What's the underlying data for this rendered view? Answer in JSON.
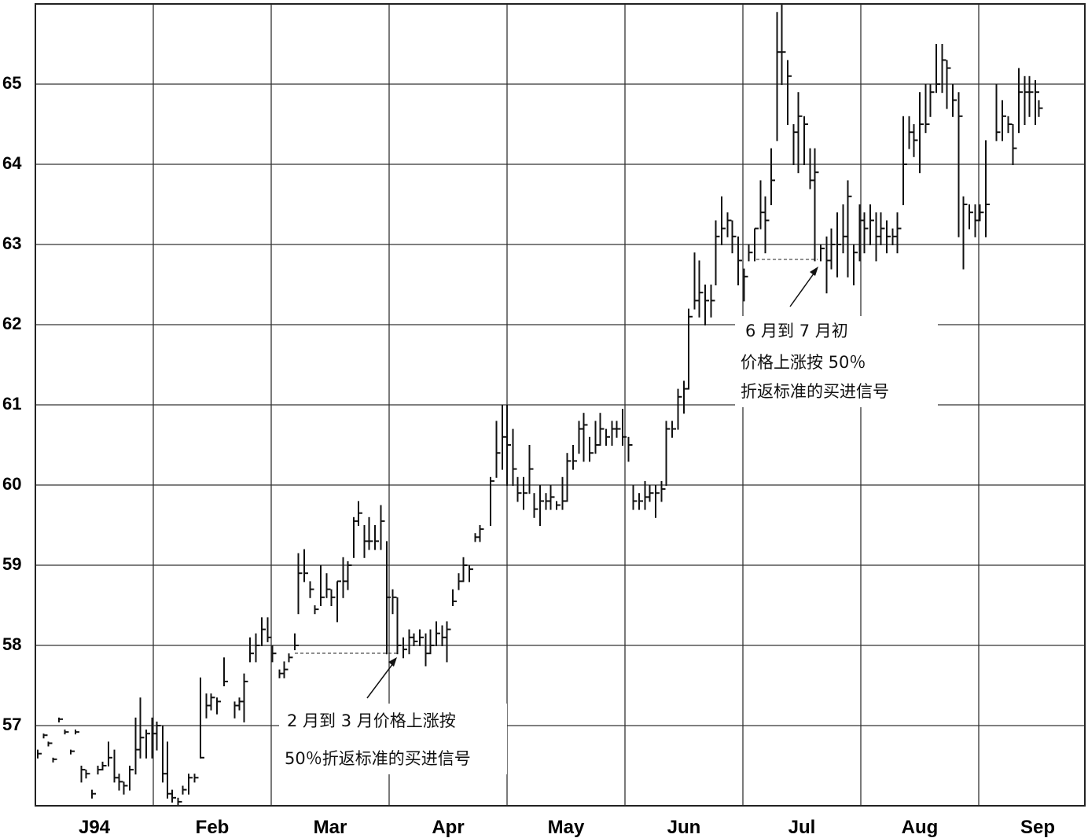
{
  "chart_data": {
    "type": "ohlc",
    "ylim": [
      56,
      66
    ],
    "yticks": [
      57,
      58,
      59,
      60,
      61,
      62,
      63,
      64,
      65
    ],
    "xlim": [
      0,
      8.9
    ],
    "xticks": [
      {
        "value": 0.5,
        "label": "J94"
      },
      {
        "value": 1.5,
        "label": "Feb"
      },
      {
        "value": 2.5,
        "label": "Mar"
      },
      {
        "value": 3.5,
        "label": "Apr"
      },
      {
        "value": 4.5,
        "label": "May"
      },
      {
        "value": 5.5,
        "label": "Jun"
      },
      {
        "value": 6.5,
        "label": "Jul"
      },
      {
        "value": 7.5,
        "label": "Aug"
      },
      {
        "value": 8.5,
        "label": "Sep"
      }
    ],
    "grid": true,
    "color": "#111111",
    "x": [
      0.02,
      0.07,
      0.11,
      0.15,
      0.2,
      0.25,
      0.3,
      0.34,
      0.39,
      0.43,
      0.48,
      0.53,
      0.57,
      0.62,
      0.67,
      0.71,
      0.75,
      0.8,
      0.85,
      0.89,
      0.94,
      0.99,
      1.03,
      1.08,
      1.12,
      1.16,
      1.21,
      1.25,
      1.3,
      1.35,
      1.4,
      1.45,
      1.49,
      1.54,
      1.6,
      1.69,
      1.73,
      1.77,
      1.82,
      1.87,
      1.92,
      1.97,
      2.01,
      2.07,
      2.11,
      2.15,
      2.2,
      2.23,
      2.28,
      2.33,
      2.37,
      2.42,
      2.47,
      2.51,
      2.56,
      2.61,
      2.65,
      2.7,
      2.74,
      2.79,
      2.83,
      2.88,
      2.93,
      2.98,
      3.03,
      3.07,
      3.12,
      3.17,
      3.21,
      3.26,
      3.31,
      3.35,
      3.4,
      3.45,
      3.49,
      3.54,
      3.59,
      3.63,
      3.68,
      3.73,
      3.77,
      3.86,
      3.91,
      3.96,
      4.0,
      4.05,
      4.09,
      4.14,
      4.19,
      4.23,
      4.28,
      4.33,
      4.37,
      4.42,
      4.47,
      4.51,
      4.56,
      4.61,
      4.65,
      4.7,
      4.75,
      4.79,
      4.84,
      4.89,
      4.93,
      4.98,
      5.03,
      5.07,
      5.12,
      5.17,
      5.21,
      5.26,
      5.31,
      5.35,
      5.4,
      5.45,
      5.5,
      5.54,
      5.59,
      5.63,
      5.68,
      5.73,
      5.77,
      5.82,
      5.87,
      5.91,
      5.96,
      6.01,
      6.05,
      6.1,
      6.15,
      6.19,
      6.24,
      6.29,
      6.33,
      6.38,
      6.43,
      6.47,
      6.52,
      6.57,
      6.61,
      6.66,
      6.71,
      6.75,
      6.8,
      6.85,
      6.89,
      6.94,
      6.99,
      7.03,
      7.08,
      7.13,
      7.17,
      7.22,
      7.27,
      7.31,
      7.36,
      7.41,
      7.45,
      7.5,
      7.55,
      7.59,
      7.64,
      7.69,
      7.73,
      7.78,
      7.83,
      7.87,
      7.92,
      7.97,
      8.01,
      8.06,
      8.15,
      8.2,
      8.25,
      8.29,
      8.34,
      8.39,
      8.43,
      8.48,
      8.51
    ],
    "high": [
      56.7,
      56.9,
      56.8,
      56.6,
      57.1,
      56.95,
      56.7,
      56.95,
      56.5,
      56.45,
      56.2,
      56.5,
      56.55,
      56.8,
      56.7,
      56.4,
      56.3,
      56.5,
      57.1,
      57.35,
      56.95,
      57.1,
      57.05,
      57.0,
      56.8,
      56.2,
      56.1,
      56.25,
      56.4,
      56.4,
      57.6,
      57.4,
      57.4,
      57.35,
      57.85,
      57.3,
      57.35,
      57.65,
      58.1,
      58.15,
      58.35,
      58.35,
      58.0,
      57.7,
      57.8,
      57.9,
      58.15,
      59.15,
      59.2,
      58.8,
      58.5,
      59.0,
      58.9,
      58.7,
      58.8,
      59.1,
      59.05,
      59.6,
      59.8,
      59.5,
      59.6,
      59.5,
      59.75,
      59.3,
      58.7,
      58.6,
      58.1,
      58.2,
      58.15,
      58.2,
      58.15,
      58.2,
      58.3,
      58.25,
      58.3,
      58.7,
      58.9,
      59.1,
      59.0,
      59.4,
      59.5,
      60.1,
      60.8,
      61.0,
      61.0,
      60.7,
      60.1,
      60.1,
      60.5,
      59.9,
      60.0,
      59.9,
      60.0,
      59.8,
      60.1,
      60.4,
      60.5,
      60.8,
      60.9,
      60.6,
      60.8,
      60.9,
      60.7,
      60.8,
      60.8,
      60.95,
      60.6,
      60.0,
      59.9,
      60.05,
      60.0,
      60.0,
      60.05,
      60.8,
      60.8,
      61.2,
      61.3,
      62.2,
      62.9,
      62.8,
      62.5,
      62.5,
      63.3,
      63.6,
      63.4,
      63.3,
      63.1,
      62.7,
      63.0,
      63.2,
      63.8,
      63.6,
      64.2,
      65.9,
      66.0,
      65.3,
      64.5,
      64.9,
      64.6,
      64.2,
      64.2,
      63.0,
      63.1,
      63.2,
      63.4,
      63.5,
      63.8,
      63.0,
      63.5,
      63.4,
      63.5,
      63.4,
      63.4,
      63.3,
      63.2,
      63.4,
      64.6,
      64.6,
      64.5,
      64.9,
      65.0,
      65.0,
      65.5,
      65.5,
      65.3,
      65.0,
      64.9,
      63.6,
      63.5,
      63.5,
      63.5,
      64.3,
      65.0,
      64.8,
      64.6,
      64.5,
      65.2,
      65.1,
      65.1,
      65.05,
      64.8
    ],
    "low": [
      56.6,
      56.85,
      56.75,
      56.55,
      57.05,
      56.9,
      56.65,
      56.9,
      56.3,
      56.35,
      56.1,
      56.4,
      56.45,
      56.5,
      56.3,
      56.2,
      56.15,
      56.2,
      56.4,
      56.6,
      56.6,
      56.6,
      56.7,
      56.3,
      56.1,
      56.05,
      56.0,
      56.15,
      56.15,
      56.3,
      56.6,
      57.1,
      57.2,
      57.15,
      57.5,
      57.1,
      57.2,
      57.05,
      57.8,
      57.8,
      58.0,
      58.05,
      57.8,
      57.6,
      57.6,
      57.8,
      57.95,
      58.4,
      58.8,
      58.6,
      58.4,
      58.5,
      58.6,
      58.5,
      58.3,
      58.6,
      58.7,
      59.1,
      59.5,
      59.1,
      59.2,
      59.2,
      59.2,
      57.9,
      58.4,
      57.9,
      57.85,
      57.9,
      58.0,
      58.0,
      57.75,
      57.9,
      58.0,
      58.0,
      57.8,
      58.5,
      58.7,
      58.8,
      58.8,
      59.3,
      59.3,
      59.5,
      60.1,
      60.2,
      60.0,
      60.0,
      59.8,
      59.7,
      59.9,
      59.6,
      59.5,
      59.7,
      59.7,
      59.7,
      59.7,
      59.8,
      60.2,
      60.4,
      60.3,
      60.3,
      60.4,
      60.5,
      60.5,
      60.5,
      60.6,
      60.5,
      60.3,
      59.7,
      59.7,
      59.7,
      59.8,
      59.6,
      59.8,
      60.0,
      60.6,
      60.7,
      60.9,
      61.2,
      62.2,
      62.1,
      62.0,
      62.1,
      62.5,
      63.0,
      63.1,
      62.9,
      62.5,
      62.3,
      62.8,
      62.8,
      63.2,
      62.9,
      63.5,
      64.3,
      65.0,
      64.5,
      64.0,
      63.9,
      64.0,
      63.7,
      62.8,
      62.8,
      62.4,
      62.7,
      62.6,
      62.9,
      62.6,
      62.5,
      62.8,
      62.9,
      63.0,
      62.8,
      63.0,
      62.9,
      63.0,
      62.9,
      63.5,
      64.2,
      64.1,
      63.9,
      64.4,
      64.6,
      64.9,
      64.9,
      64.7,
      64.6,
      63.1,
      62.7,
      63.2,
      63.1,
      63.3,
      63.1,
      64.3,
      64.3,
      64.4,
      64.0,
      64.4,
      64.5,
      64.6,
      64.5,
      64.6
    ],
    "close": [
      56.65,
      56.88,
      56.78,
      56.58,
      57.08,
      56.92,
      56.68,
      56.92,
      56.45,
      56.4,
      56.15,
      56.45,
      56.5,
      56.6,
      56.35,
      56.3,
      56.25,
      56.45,
      56.7,
      56.85,
      56.9,
      56.9,
      57.0,
      56.4,
      56.15,
      56.1,
      56.05,
      56.2,
      56.35,
      56.35,
      56.6,
      57.25,
      57.35,
      57.3,
      57.55,
      57.25,
      57.3,
      57.55,
      57.9,
      58.0,
      58.2,
      58.1,
      57.9,
      57.65,
      57.7,
      57.85,
      58.0,
      58.9,
      58.9,
      58.7,
      58.45,
      58.6,
      58.7,
      58.6,
      58.8,
      58.8,
      59.0,
      59.55,
      59.65,
      59.3,
      59.3,
      59.3,
      59.55,
      58.6,
      58.6,
      58.0,
      57.95,
      58.1,
      58.05,
      58.1,
      57.9,
      58.0,
      58.15,
      58.1,
      58.2,
      58.55,
      58.8,
      59.0,
      58.95,
      59.35,
      59.45,
      60.05,
      60.4,
      60.6,
      60.5,
      60.2,
      59.9,
      59.9,
      60.2,
      59.7,
      59.8,
      59.8,
      59.85,
      59.75,
      59.8,
      60.3,
      60.3,
      60.7,
      60.75,
      60.4,
      60.5,
      60.7,
      60.6,
      60.7,
      60.7,
      60.6,
      60.5,
      59.8,
      59.8,
      59.85,
      59.9,
      59.9,
      59.95,
      60.7,
      60.7,
      61.1,
      61.2,
      62.1,
      62.3,
      62.4,
      62.3,
      62.3,
      63.1,
      63.2,
      63.3,
      63.1,
      62.8,
      62.6,
      62.9,
      63.2,
      63.4,
      63.3,
      63.8,
      65.4,
      65.4,
      65.1,
      64.4,
      64.6,
      64.5,
      63.8,
      63.9,
      62.95,
      62.8,
      63.0,
      63.0,
      63.1,
      63.6,
      62.9,
      63.3,
      63.2,
      63.3,
      63.1,
      63.2,
      63.1,
      63.1,
      63.2,
      64.0,
      64.4,
      64.3,
      64.5,
      64.5,
      64.9,
      65.0,
      65.3,
      65.2,
      64.8,
      64.6,
      63.5,
      63.4,
      63.3,
      63.4,
      63.5,
      64.4,
      64.6,
      64.5,
      64.2,
      64.9,
      64.9,
      64.9,
      64.9,
      64.7
    ],
    "annotations": [
      {
        "lines": [
          "2 月到 3 月价格上涨按",
          "50％折返标准的买进信号"
        ]
      },
      {
        "lines": [
          "6 月到 7 月初",
          "价格上涨按 50％",
          "折返标准的买进信号"
        ]
      }
    ]
  }
}
